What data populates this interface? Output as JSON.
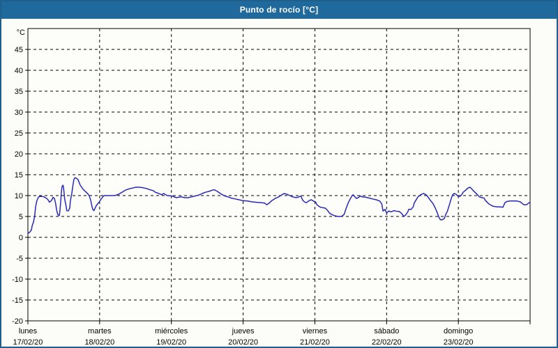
{
  "window": {
    "title": "Punto de rocío [°C]"
  },
  "colors": {
    "frame": "#1e5f8c",
    "titlebar_bg": "#20699c",
    "titlebar_text": "#ffffff",
    "chart_bg": "#fcfdf8",
    "plot_bg": "#fdfefa",
    "grid": "#000000",
    "axis": "#000000",
    "line": "#2828b8",
    "label_text": "#000000"
  },
  "chart_data": {
    "type": "line",
    "title": "Punto de rocío [°C]",
    "y_unit_label": "°C",
    "ylim": [
      -20,
      50
    ],
    "yticks": [
      45,
      40,
      35,
      30,
      25,
      20,
      15,
      10,
      5,
      0,
      -5,
      -10,
      -15,
      -20
    ],
    "ygridlines": [
      45,
      40,
      35,
      30,
      25,
      20,
      15,
      10,
      5,
      0,
      -5,
      -10,
      -15
    ],
    "grid": "dashed",
    "legend": "none",
    "x_axis": {
      "unit": "hours_from_monday_00:00",
      "range": [
        0,
        168
      ],
      "gridline_hours": [
        24,
        48,
        72,
        96,
        120,
        144
      ],
      "day_ticks": [
        {
          "day": "lunes",
          "date": "17/02/20",
          "hour": 0
        },
        {
          "day": "martes",
          "date": "18/02/20",
          "hour": 24
        },
        {
          "day": "miércoles",
          "date": "19/02/20",
          "hour": 48
        },
        {
          "day": "jueves",
          "date": "20/02/20",
          "hour": 72
        },
        {
          "day": "viernes",
          "date": "21/02/20",
          "hour": 96
        },
        {
          "day": "sábado",
          "date": "22/02/20",
          "hour": 120
        },
        {
          "day": "domingo",
          "date": "23/02/20",
          "hour": 144
        }
      ]
    },
    "series": [
      {
        "name": "Punto de rocío",
        "color": "#2828b8",
        "points": [
          [
            0,
            0.9
          ],
          [
            0.7,
            1.3
          ],
          [
            1.2,
            1.8
          ],
          [
            1.4,
            2.7
          ],
          [
            1.9,
            3.7
          ],
          [
            2.3,
            5.4
          ],
          [
            2.6,
            7.4
          ],
          [
            3,
            8.8
          ],
          [
            3.5,
            9.6
          ],
          [
            4,
            9.8
          ],
          [
            4.7,
            9.8
          ],
          [
            5.4,
            9.7
          ],
          [
            6.1,
            9.4
          ],
          [
            6.5,
            9.2
          ],
          [
            7,
            8.7
          ],
          [
            7.2,
            8.4
          ],
          [
            7.7,
            8.7
          ],
          [
            8.2,
            9.2
          ],
          [
            8.4,
            9.6
          ],
          [
            8.9,
            9.3
          ],
          [
            9.3,
            8
          ],
          [
            9.6,
            6.6
          ],
          [
            10,
            5.4
          ],
          [
            10.5,
            5.2
          ],
          [
            10.7,
            6.3
          ],
          [
            11,
            8.7
          ],
          [
            11.2,
            10.9
          ],
          [
            11.4,
            12.1
          ],
          [
            11.7,
            12.5
          ],
          [
            11.9,
            12.1
          ],
          [
            12.1,
            10.6
          ],
          [
            12.3,
            9.2
          ],
          [
            12.8,
            7.4
          ],
          [
            13,
            6.4
          ],
          [
            13.5,
            6.3
          ],
          [
            14,
            7
          ],
          [
            14.2,
            8.7
          ],
          [
            14.7,
            10.6
          ],
          [
            15.1,
            12.6
          ],
          [
            15.4,
            13.9
          ],
          [
            15.8,
            14.3
          ],
          [
            16.3,
            14.1
          ],
          [
            16.8,
            13.8
          ],
          [
            17.5,
            12.5
          ],
          [
            18.6,
            11.4
          ],
          [
            19.8,
            10.6
          ],
          [
            20.5,
            10
          ],
          [
            21,
            8.9
          ],
          [
            21.4,
            7.5
          ],
          [
            21.7,
            6.7
          ],
          [
            22.1,
            6.4
          ],
          [
            22.8,
            7.5
          ],
          [
            23.3,
            8
          ],
          [
            23.8,
            8.4
          ],
          [
            24.5,
            9.2
          ],
          [
            25.2,
            9.8
          ],
          [
            25.6,
            10
          ],
          [
            26.8,
            10
          ],
          [
            29.1,
            10
          ],
          [
            30.3,
            10.3
          ],
          [
            31.5,
            10.8
          ],
          [
            32.6,
            11.3
          ],
          [
            33.8,
            11.6
          ],
          [
            35,
            11.8
          ],
          [
            36.1,
            12
          ],
          [
            37.3,
            12
          ],
          [
            38.4,
            11.9
          ],
          [
            39.6,
            11.7
          ],
          [
            40.8,
            11.4
          ],
          [
            41.9,
            11.2
          ],
          [
            42.6,
            10.8
          ],
          [
            43.8,
            10.5
          ],
          [
            44.7,
            10.2
          ],
          [
            45.4,
            10.5
          ],
          [
            46.6,
            10
          ],
          [
            48.2,
            9.9
          ],
          [
            49.6,
            9.5
          ],
          [
            51.3,
            9.7
          ],
          [
            52.4,
            9.5
          ],
          [
            53.6,
            9.5
          ],
          [
            54.8,
            9.7
          ],
          [
            55.9,
            9.9
          ],
          [
            57.1,
            10.1
          ],
          [
            58.3,
            10.5
          ],
          [
            59.4,
            10.8
          ],
          [
            60.6,
            11
          ],
          [
            61.7,
            11.3
          ],
          [
            62.4,
            11.4
          ],
          [
            63.4,
            11
          ],
          [
            64.8,
            10.3
          ],
          [
            65.9,
            9.9
          ],
          [
            66.9,
            9.7
          ],
          [
            68,
            9.4
          ],
          [
            69.4,
            9.2
          ],
          [
            70.6,
            9
          ],
          [
            71.8,
            8.8
          ],
          [
            73.4,
            8.7
          ],
          [
            75,
            8.5
          ],
          [
            76.4,
            8.4
          ],
          [
            78.1,
            8.3
          ],
          [
            79.2,
            8.2
          ],
          [
            79.9,
            7.8
          ],
          [
            80.9,
            8.3
          ],
          [
            81.6,
            8.8
          ],
          [
            82.7,
            9.3
          ],
          [
            83.9,
            9.7
          ],
          [
            85,
            10.2
          ],
          [
            85.7,
            10.5
          ],
          [
            86.7,
            10.3
          ],
          [
            87.6,
            10
          ],
          [
            88.5,
            9.7
          ],
          [
            89.7,
            9.5
          ],
          [
            90.4,
            9.6
          ],
          [
            91.3,
            9.9
          ],
          [
            92,
            8.8
          ],
          [
            92.7,
            8.4
          ],
          [
            93.2,
            8.3
          ],
          [
            94.1,
            8.8
          ],
          [
            94.8,
            9
          ],
          [
            95.5,
            8.7
          ],
          [
            96.2,
            8.5
          ],
          [
            96.7,
            7.8
          ],
          [
            97.2,
            7.5
          ],
          [
            97.9,
            7.2
          ],
          [
            98.6,
            7.1
          ],
          [
            99.5,
            7
          ],
          [
            100.2,
            6.5
          ],
          [
            100.9,
            5.8
          ],
          [
            101.8,
            5.4
          ],
          [
            102.5,
            5.2
          ],
          [
            103.7,
            5
          ],
          [
            104.9,
            5
          ],
          [
            105.8,
            5.5
          ],
          [
            106.5,
            7
          ],
          [
            107.2,
            8.3
          ],
          [
            107.9,
            9.3
          ],
          [
            108.3,
            9.8
          ],
          [
            108.8,
            10.2
          ],
          [
            109.5,
            9.6
          ],
          [
            110,
            9.3
          ],
          [
            110.7,
            9.6
          ],
          [
            111.2,
            9.9
          ],
          [
            111.8,
            9.7
          ],
          [
            113,
            9.6
          ],
          [
            114.2,
            9.4
          ],
          [
            115.3,
            9.2
          ],
          [
            116.5,
            9
          ],
          [
            117.7,
            8.7
          ],
          [
            118.4,
            8
          ],
          [
            118.8,
            6.3
          ],
          [
            119.5,
            6.7
          ],
          [
            120,
            5.8
          ],
          [
            120.7,
            6.3
          ],
          [
            121.4,
            6.1
          ],
          [
            121.8,
            6.2
          ],
          [
            122.5,
            6.4
          ],
          [
            123,
            6.3
          ],
          [
            123.7,
            6.2
          ],
          [
            124.2,
            6.2
          ],
          [
            124.9,
            5.8
          ],
          [
            125.8,
            5
          ],
          [
            126.3,
            5.3
          ],
          [
            127,
            6
          ],
          [
            127.4,
            6.7
          ],
          [
            128.2,
            6.7
          ],
          [
            128.9,
            7.3
          ],
          [
            129.3,
            8.3
          ],
          [
            130.5,
            9.7
          ],
          [
            131.2,
            10.1
          ],
          [
            131.7,
            10.3
          ],
          [
            132.3,
            10.5
          ],
          [
            133,
            10.3
          ],
          [
            133.5,
            10
          ],
          [
            134.7,
            8.8
          ],
          [
            135.6,
            8
          ],
          [
            136.3,
            7
          ],
          [
            137,
            5.8
          ],
          [
            137.5,
            4.8
          ],
          [
            138,
            4.2
          ],
          [
            138.6,
            4.2
          ],
          [
            139.3,
            4.5
          ],
          [
            139.8,
            5.5
          ],
          [
            140.3,
            6.2
          ],
          [
            141,
            7.8
          ],
          [
            141.7,
            9.5
          ],
          [
            142.1,
            10.2
          ],
          [
            142.6,
            10.5
          ],
          [
            143.3,
            10.3
          ],
          [
            143.8,
            9.9
          ],
          [
            144.5,
            9.8
          ],
          [
            145.1,
            10.2
          ],
          [
            145.6,
            10.8
          ],
          [
            146.3,
            11.2
          ],
          [
            147.2,
            11.8
          ],
          [
            147.9,
            12
          ],
          [
            148.6,
            11.5
          ],
          [
            149.1,
            11.1
          ],
          [
            150.3,
            10.3
          ],
          [
            151,
            9.7
          ],
          [
            151.9,
            9.5
          ],
          [
            152.6,
            9.4
          ],
          [
            153.1,
            8.8
          ],
          [
            153.8,
            8.3
          ],
          [
            154.2,
            8
          ],
          [
            155.4,
            7.5
          ],
          [
            156.1,
            7.4
          ],
          [
            157,
            7.3
          ],
          [
            158,
            7.3
          ],
          [
            158.9,
            7.2
          ],
          [
            159.6,
            8.3
          ],
          [
            160.3,
            8.6
          ],
          [
            161.2,
            8.7
          ],
          [
            162.4,
            8.7
          ],
          [
            163.6,
            8.7
          ],
          [
            164.7,
            8.5
          ],
          [
            165.9,
            7.8
          ],
          [
            166.8,
            7.8
          ],
          [
            167.3,
            8.1
          ],
          [
            168,
            8.4
          ]
        ]
      }
    ]
  }
}
